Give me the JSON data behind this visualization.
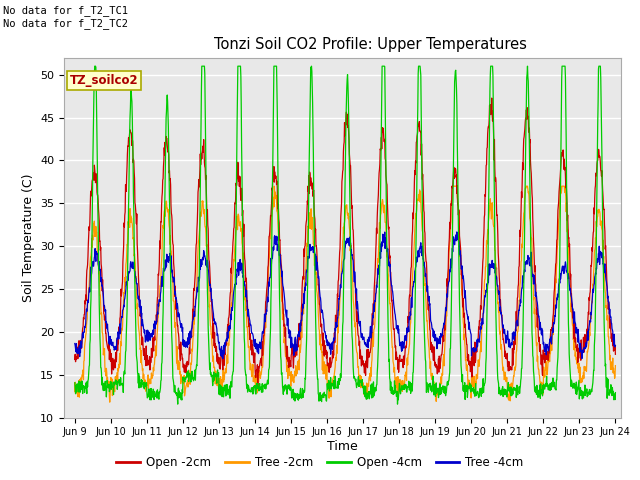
{
  "title": "Tonzi Soil CO2 Profile: Upper Temperatures",
  "xlabel": "Time",
  "ylabel": "Soil Temperature (C)",
  "ylim": [
    10,
    52
  ],
  "yticks": [
    10,
    15,
    20,
    25,
    30,
    35,
    40,
    45,
    50
  ],
  "xtick_labels": [
    "Jun 9",
    "Jun 10",
    "Jun 11",
    "Jun 12",
    "Jun 13",
    "Jun 14",
    "Jun 15",
    "Jun 16",
    "Jun 17",
    "Jun 18",
    "Jun 19",
    "Jun 20",
    "Jun 21",
    "Jun 22",
    "Jun 23",
    "Jun 24"
  ],
  "xtick_positions": [
    9,
    10,
    11,
    12,
    13,
    14,
    15,
    16,
    17,
    18,
    19,
    20,
    21,
    22,
    23,
    24
  ],
  "colors": {
    "open_2cm": "#cc0000",
    "tree_2cm": "#ff9900",
    "open_4cm": "#00cc00",
    "tree_4cm": "#0000cc"
  },
  "legend_labels": [
    "Open -2cm",
    "Tree -2cm",
    "Open -4cm",
    "Tree -4cm"
  ],
  "annotation_text": "No data for f_T2_TC1\nNo data for f_T2_TC2",
  "box_label": "TZ_soilco2",
  "background_color": "#e8e8e8",
  "figure_background": "#ffffff",
  "grid_color": "#ffffff",
  "n_days": 15,
  "samples_per_day": 96
}
